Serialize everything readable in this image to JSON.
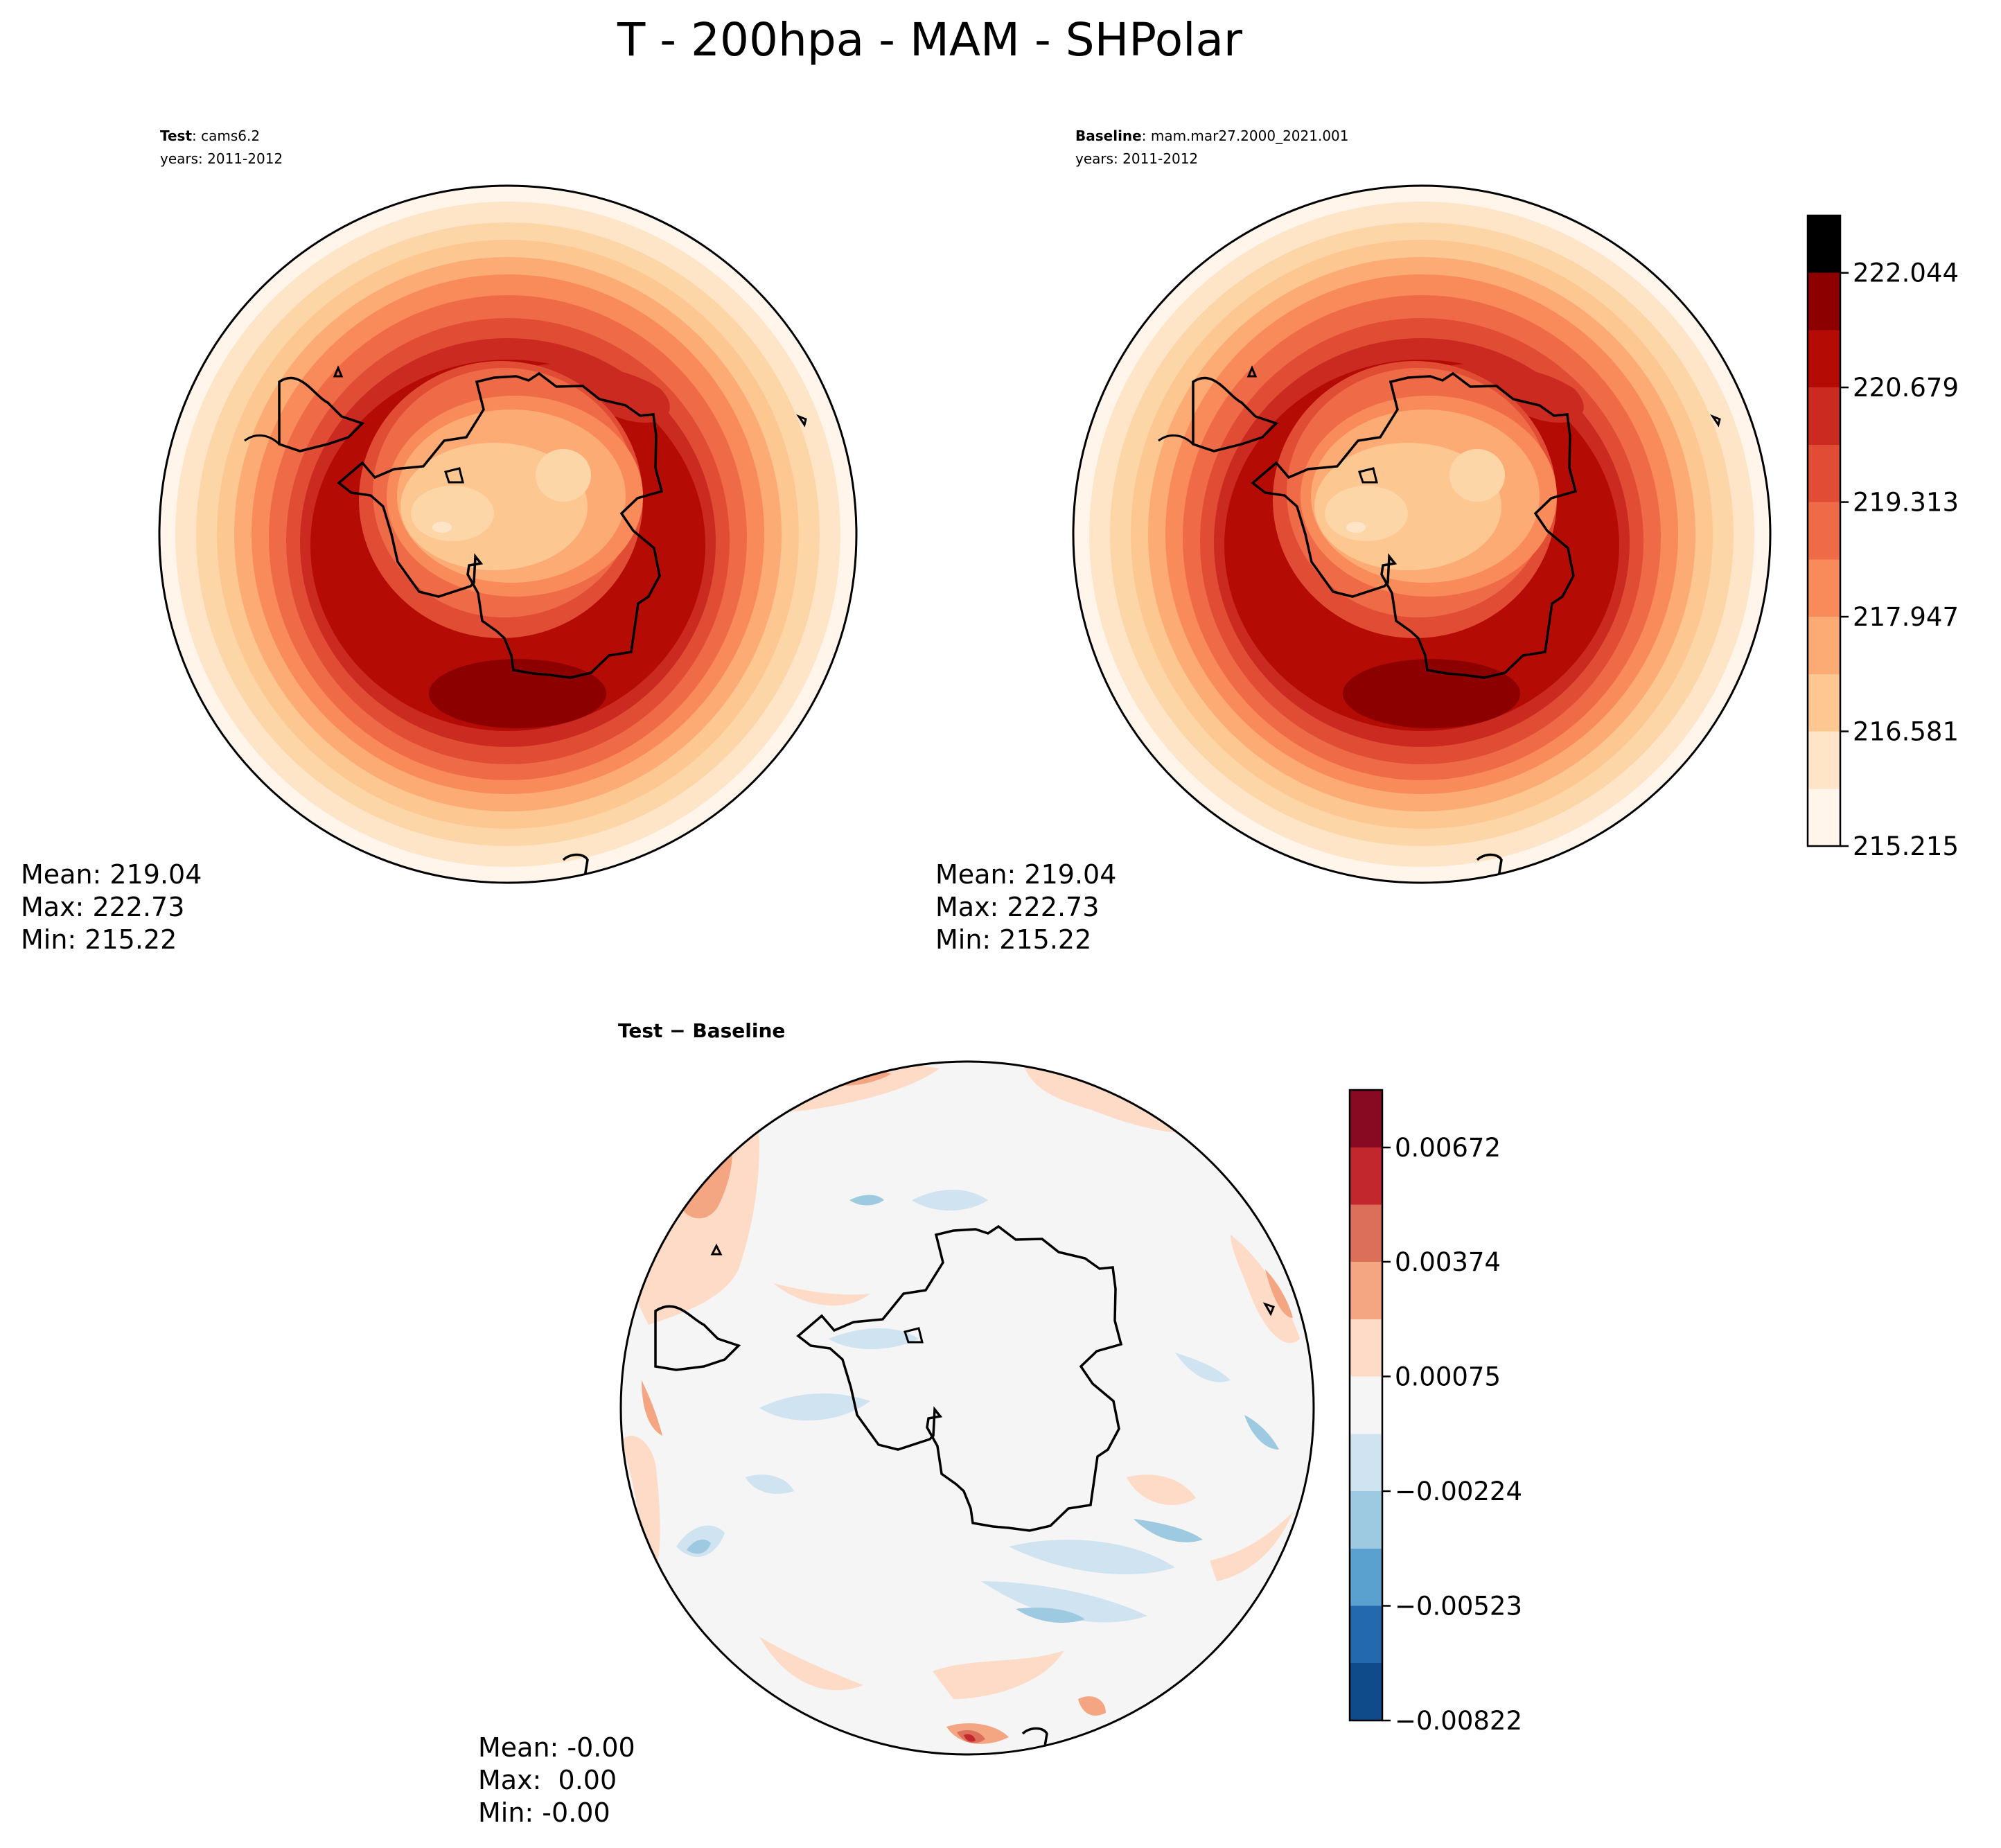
{
  "figure": {
    "title": "T - 200hpa - MAM - SHPolar"
  },
  "panels": {
    "test": {
      "label_bold": "Test",
      "label_rest": ": cams6.2",
      "years": "years: 2011-2012",
      "stats": {
        "mean": "Mean: 219.04",
        "max": "Max: 222.73",
        "min": "Min: 215.22"
      }
    },
    "baseline": {
      "label_bold": "Baseline",
      "label_rest": ": mam.mar27.2000_2021.001",
      "years": "years: 2011-2012",
      "stats": {
        "mean": "Mean: 219.04",
        "max": "Max: 222.73",
        "min": "Min: 215.22"
      }
    },
    "diff": {
      "label": "Test − Baseline",
      "stats": {
        "mean": "Mean: -0.00",
        "max": "Max:  0.00",
        "min": "Min: -0.00"
      }
    }
  },
  "colors": {
    "reds": [
      "#fff5eb",
      "#fee6ce",
      "#fdd0a2",
      "#fdae6b",
      "#fd8d3c",
      "#f16913",
      "#e6550d",
      "#d94801",
      "#b80000",
      "#8b0000"
    ],
    "temp_scale": [
      "#fff5eb",
      "#ffe5c8",
      "#fdc791",
      "#fcab75",
      "#f98a59",
      "#ef6b48",
      "#e04d34",
      "#cb2a20",
      "#b50b05",
      "#8c0000"
    ],
    "diff_scale": [
      "#0f4a8a",
      "#2369ad",
      "#5aa1cf",
      "#9ecae1",
      "#cfe3f0",
      "#f5f5f5",
      "#fddbc7",
      "#f4a582",
      "#dc6f5a",
      "#c1272d",
      "#880a22"
    ],
    "coast": "#000000"
  },
  "chart_data": [
    {
      "type": "heatmap",
      "name": "test-map",
      "title": "Test: cams6.2",
      "field": "T at 200 hPa, MAM, SH polar projection",
      "mean": 219.04,
      "max": 222.73,
      "min": 215.22
    },
    {
      "type": "heatmap",
      "name": "baseline-map",
      "title": "Baseline: mam.mar27.2000_2021.001",
      "field": "T at 200 hPa, MAM, SH polar projection",
      "mean": 219.04,
      "max": 222.73,
      "min": 215.22
    },
    {
      "type": "heatmap",
      "name": "temperature-colorbar",
      "levels": [
        215.215,
        215.898,
        216.581,
        217.264,
        217.947,
        218.63,
        219.313,
        219.996,
        220.679,
        221.362,
        222.044,
        222.727
      ],
      "tick_values": [
        215.215,
        216.581,
        217.947,
        219.313,
        220.679,
        222.044
      ],
      "tick_labels": [
        "215.215",
        "216.581",
        "217.947",
        "219.313",
        "220.679",
        "222.044"
      ],
      "ylim": [
        215.215,
        222.727
      ]
    },
    {
      "type": "heatmap",
      "name": "difference-map",
      "title": "Test − Baseline",
      "mean": -0.0,
      "max": 0.0,
      "min": -0.0
    },
    {
      "type": "heatmap",
      "name": "difference-colorbar",
      "levels": [
        -0.00822,
        -0.00672,
        -0.00523,
        -0.00374,
        -0.00224,
        -0.00075,
        0.00075,
        0.00224,
        0.00374,
        0.00523,
        0.00672,
        0.00822
      ],
      "tick_values": [
        -0.00822,
        -0.00523,
        -0.00224,
        0.00075,
        0.00374,
        0.00672
      ],
      "tick_labels": [
        "−0.00822",
        "−0.00523",
        "−0.00224",
        "0.00075",
        "0.00374",
        "0.00672"
      ],
      "ylim": [
        -0.00822,
        0.00822
      ]
    }
  ]
}
